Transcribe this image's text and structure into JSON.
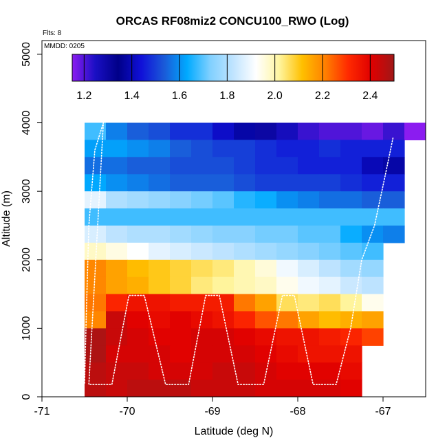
{
  "chart_data": {
    "type": "heatmap",
    "title": "ORCAS RF08miz2 CONCU100_RWO (Log)",
    "flights_label": "Flts: 8",
    "date_label": "MMDD: 0205",
    "xlabel": "Latitude (deg N)",
    "ylabel": "Altitude (m)",
    "xlim": [
      -71,
      -66.5
    ],
    "ylim": [
      0,
      5200
    ],
    "x_ticks": [
      -71,
      -70,
      -69,
      -68,
      -67
    ],
    "x_tick_labels": [
      "-71",
      "-70",
      "-69",
      "-68",
      "-67"
    ],
    "y_ticks": [
      0,
      1000,
      2000,
      3000,
      4000,
      5000
    ],
    "y_tick_labels": [
      "0",
      "1000",
      "2000",
      "3000",
      "4000",
      "5000"
    ],
    "colorbar": {
      "range": [
        1.15,
        2.5
      ],
      "ticks": [
        1.2,
        1.4,
        1.6,
        1.8,
        2.0,
        2.2,
        2.4
      ],
      "tick_labels": [
        "1.2",
        "1.4",
        "1.6",
        "1.8",
        "2.0",
        "2.2",
        "2.4"
      ],
      "stops": [
        "#8b1cf0",
        "#1a0fc4",
        "#000088",
        "#1010d8",
        "#1a5ad8",
        "#00aaff",
        "#80d0ff",
        "#c0e4ff",
        "#ffffff",
        "#fff5a0",
        "#ffc000",
        "#ff8000",
        "#ff2a00",
        "#e00000",
        "#a01818"
      ]
    },
    "cell_width_deg": 0.25,
    "cell_height_m": 250,
    "grid": [
      {
        "alt": 3750,
        "lat_start": -70.5,
        "values": [
          1.68,
          1.58,
          1.54,
          1.52,
          1.48,
          1.48,
          1.42,
          1.38,
          1.3,
          1.26,
          1.22,
          1.2,
          1.2,
          1.18,
          1.22,
          1.15
        ]
      },
      {
        "alt": 3500,
        "lat_start": -70.5,
        "values": [
          1.62,
          1.62,
          1.6,
          1.58,
          1.54,
          1.52,
          1.5,
          1.5,
          1.48,
          1.46,
          1.46,
          1.48,
          1.46,
          1.46,
          1.46
        ]
      },
      {
        "alt": 3250,
        "lat_start": -70.5,
        "values": [
          1.56,
          1.56,
          1.54,
          1.54,
          1.52,
          1.52,
          1.52,
          1.5,
          1.48,
          1.48,
          1.46,
          1.46,
          1.46,
          1.4,
          1.38
        ]
      },
      {
        "alt": 3000,
        "lat_start": -70.5,
        "values": [
          1.63,
          1.6,
          1.58,
          1.56,
          1.54,
          1.54,
          1.54,
          1.52,
          1.5,
          1.5,
          1.5,
          1.5,
          1.48,
          1.46,
          1.46
        ]
      },
      {
        "alt": 2750,
        "lat_start": -70.5,
        "values": [
          1.88,
          1.8,
          1.78,
          1.76,
          1.74,
          1.72,
          1.7,
          1.66,
          1.64,
          1.6,
          1.58,
          1.56,
          1.56,
          1.54,
          1.54
        ]
      },
      {
        "alt": 2500,
        "lat_start": -70.5,
        "values": [
          1.68,
          1.68,
          1.68,
          1.68,
          1.68,
          1.68,
          1.68,
          1.68,
          1.68,
          1.68,
          1.68,
          1.68,
          1.68,
          1.68,
          1.68
        ]
      },
      {
        "alt": 2250,
        "lat_start": -70.5,
        "values": [
          1.86,
          1.82,
          1.8,
          1.8,
          1.78,
          1.76,
          1.74,
          1.74,
          1.72,
          1.72,
          1.7,
          1.7,
          1.64,
          1.6,
          1.58
        ]
      },
      {
        "alt": 2000,
        "lat_start": -70.5,
        "values": [
          1.98,
          1.95,
          1.92,
          1.88,
          1.86,
          1.84,
          1.82,
          1.8,
          1.78,
          1.76,
          1.74,
          1.72,
          1.7,
          1.68
        ]
      },
      {
        "alt": 1750,
        "lat_start": -70.5,
        "values": [
          2.2,
          2.16,
          2.12,
          2.1,
          2.08,
          2.06,
          2.04,
          2.0,
          1.96,
          1.9,
          1.86,
          1.82,
          1.78,
          1.76
        ]
      },
      {
        "alt": 1500,
        "lat_start": -70.5,
        "values": [
          2.2,
          2.16,
          2.14,
          2.1,
          2.08,
          2.04,
          2.02,
          2.0,
          1.98,
          1.94,
          1.9,
          1.88,
          1.84,
          1.82
        ]
      },
      {
        "alt": 1250,
        "lat_start": -70.5,
        "values": [
          2.22,
          2.32,
          2.36,
          2.36,
          2.34,
          2.34,
          2.34,
          2.22,
          2.16,
          2.06,
          2.04,
          2.06,
          2.02,
          1.94
        ]
      },
      {
        "alt": 1000,
        "lat_start": -70.5,
        "values": [
          2.2,
          2.44,
          2.4,
          2.38,
          2.4,
          2.38,
          2.36,
          2.32,
          2.26,
          2.22,
          2.16,
          2.12,
          2.14,
          2.16
        ]
      },
      {
        "alt": 750,
        "lat_start": -70.5,
        "values": [
          2.48,
          2.44,
          2.42,
          2.4,
          2.4,
          2.42,
          2.42,
          2.4,
          2.38,
          2.36,
          2.36,
          2.34,
          2.32,
          2.28
        ]
      },
      {
        "alt": 500,
        "lat_start": -70.5,
        "values": [
          2.48,
          2.42,
          2.42,
          2.42,
          2.4,
          2.42,
          2.42,
          2.42,
          2.4,
          2.38,
          2.36,
          2.36,
          2.36
        ]
      },
      {
        "alt": 250,
        "lat_start": -70.5,
        "values": [
          2.46,
          2.44,
          2.44,
          2.42,
          2.42,
          2.42,
          2.44,
          2.44,
          2.42,
          2.4,
          2.4,
          2.4,
          2.38
        ]
      },
      {
        "alt": 0,
        "lat_start": -70.5,
        "values": [
          2.46,
          2.44,
          2.46,
          2.46,
          2.46,
          2.44,
          2.44,
          2.44,
          2.42,
          2.42,
          2.42,
          2.42,
          2.4
        ]
      }
    ],
    "flight_track": [
      [
        -70.5,
        200
      ],
      [
        -70.48,
        1200
      ],
      [
        -70.45,
        2500
      ],
      [
        -70.38,
        3600
      ],
      [
        -70.28,
        4000
      ],
      [
        -70.45,
        180
      ],
      [
        -70.18,
        180
      ],
      [
        -69.98,
        1480
      ],
      [
        -69.8,
        1480
      ],
      [
        -69.55,
        180
      ],
      [
        -69.28,
        180
      ],
      [
        -69.08,
        1480
      ],
      [
        -68.92,
        1480
      ],
      [
        -68.7,
        180
      ],
      [
        -68.4,
        180
      ],
      [
        -68.18,
        1480
      ],
      [
        -68.04,
        1480
      ],
      [
        -67.82,
        180
      ],
      [
        -67.55,
        180
      ],
      [
        -67.38,
        1000
      ],
      [
        -67.25,
        2000
      ],
      [
        -67.1,
        2500
      ],
      [
        -66.98,
        3200
      ],
      [
        -66.88,
        3800
      ]
    ]
  }
}
